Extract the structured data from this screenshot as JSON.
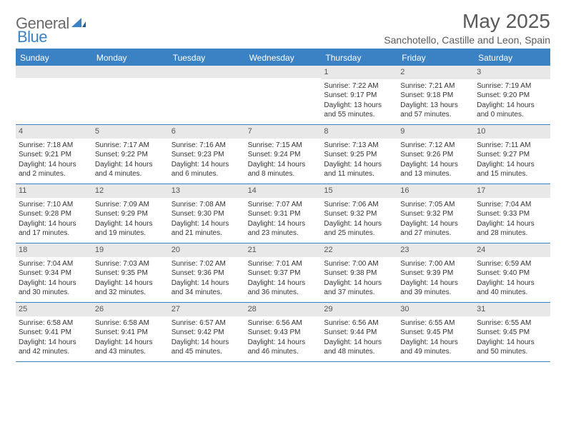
{
  "logo": {
    "word1": "General",
    "word2": "Blue"
  },
  "title": "May 2025",
  "location": "Sanchotello, Castille and Leon, Spain",
  "colors": {
    "accent": "#3b82c4",
    "grayBg": "#e8e8e8",
    "text": "#333333"
  },
  "dayNames": [
    "Sunday",
    "Monday",
    "Tuesday",
    "Wednesday",
    "Thursday",
    "Friday",
    "Saturday"
  ],
  "weeks": [
    [
      null,
      null,
      null,
      null,
      {
        "n": "1",
        "sr": "7:22 AM",
        "ss": "9:17 PM",
        "dl": "13 hours and 55 minutes."
      },
      {
        "n": "2",
        "sr": "7:21 AM",
        "ss": "9:18 PM",
        "dl": "13 hours and 57 minutes."
      },
      {
        "n": "3",
        "sr": "7:19 AM",
        "ss": "9:20 PM",
        "dl": "14 hours and 0 minutes."
      }
    ],
    [
      {
        "n": "4",
        "sr": "7:18 AM",
        "ss": "9:21 PM",
        "dl": "14 hours and 2 minutes."
      },
      {
        "n": "5",
        "sr": "7:17 AM",
        "ss": "9:22 PM",
        "dl": "14 hours and 4 minutes."
      },
      {
        "n": "6",
        "sr": "7:16 AM",
        "ss": "9:23 PM",
        "dl": "14 hours and 6 minutes."
      },
      {
        "n": "7",
        "sr": "7:15 AM",
        "ss": "9:24 PM",
        "dl": "14 hours and 8 minutes."
      },
      {
        "n": "8",
        "sr": "7:13 AM",
        "ss": "9:25 PM",
        "dl": "14 hours and 11 minutes."
      },
      {
        "n": "9",
        "sr": "7:12 AM",
        "ss": "9:26 PM",
        "dl": "14 hours and 13 minutes."
      },
      {
        "n": "10",
        "sr": "7:11 AM",
        "ss": "9:27 PM",
        "dl": "14 hours and 15 minutes."
      }
    ],
    [
      {
        "n": "11",
        "sr": "7:10 AM",
        "ss": "9:28 PM",
        "dl": "14 hours and 17 minutes."
      },
      {
        "n": "12",
        "sr": "7:09 AM",
        "ss": "9:29 PM",
        "dl": "14 hours and 19 minutes."
      },
      {
        "n": "13",
        "sr": "7:08 AM",
        "ss": "9:30 PM",
        "dl": "14 hours and 21 minutes."
      },
      {
        "n": "14",
        "sr": "7:07 AM",
        "ss": "9:31 PM",
        "dl": "14 hours and 23 minutes."
      },
      {
        "n": "15",
        "sr": "7:06 AM",
        "ss": "9:32 PM",
        "dl": "14 hours and 25 minutes."
      },
      {
        "n": "16",
        "sr": "7:05 AM",
        "ss": "9:32 PM",
        "dl": "14 hours and 27 minutes."
      },
      {
        "n": "17",
        "sr": "7:04 AM",
        "ss": "9:33 PM",
        "dl": "14 hours and 28 minutes."
      }
    ],
    [
      {
        "n": "18",
        "sr": "7:04 AM",
        "ss": "9:34 PM",
        "dl": "14 hours and 30 minutes."
      },
      {
        "n": "19",
        "sr": "7:03 AM",
        "ss": "9:35 PM",
        "dl": "14 hours and 32 minutes."
      },
      {
        "n": "20",
        "sr": "7:02 AM",
        "ss": "9:36 PM",
        "dl": "14 hours and 34 minutes."
      },
      {
        "n": "21",
        "sr": "7:01 AM",
        "ss": "9:37 PM",
        "dl": "14 hours and 36 minutes."
      },
      {
        "n": "22",
        "sr": "7:00 AM",
        "ss": "9:38 PM",
        "dl": "14 hours and 37 minutes."
      },
      {
        "n": "23",
        "sr": "7:00 AM",
        "ss": "9:39 PM",
        "dl": "14 hours and 39 minutes."
      },
      {
        "n": "24",
        "sr": "6:59 AM",
        "ss": "9:40 PM",
        "dl": "14 hours and 40 minutes."
      }
    ],
    [
      {
        "n": "25",
        "sr": "6:58 AM",
        "ss": "9:41 PM",
        "dl": "14 hours and 42 minutes."
      },
      {
        "n": "26",
        "sr": "6:58 AM",
        "ss": "9:41 PM",
        "dl": "14 hours and 43 minutes."
      },
      {
        "n": "27",
        "sr": "6:57 AM",
        "ss": "9:42 PM",
        "dl": "14 hours and 45 minutes."
      },
      {
        "n": "28",
        "sr": "6:56 AM",
        "ss": "9:43 PM",
        "dl": "14 hours and 46 minutes."
      },
      {
        "n": "29",
        "sr": "6:56 AM",
        "ss": "9:44 PM",
        "dl": "14 hours and 48 minutes."
      },
      {
        "n": "30",
        "sr": "6:55 AM",
        "ss": "9:45 PM",
        "dl": "14 hours and 49 minutes."
      },
      {
        "n": "31",
        "sr": "6:55 AM",
        "ss": "9:45 PM",
        "dl": "14 hours and 50 minutes."
      }
    ]
  ],
  "labels": {
    "sunrise": "Sunrise: ",
    "sunset": "Sunset: ",
    "daylight": "Daylight: "
  }
}
